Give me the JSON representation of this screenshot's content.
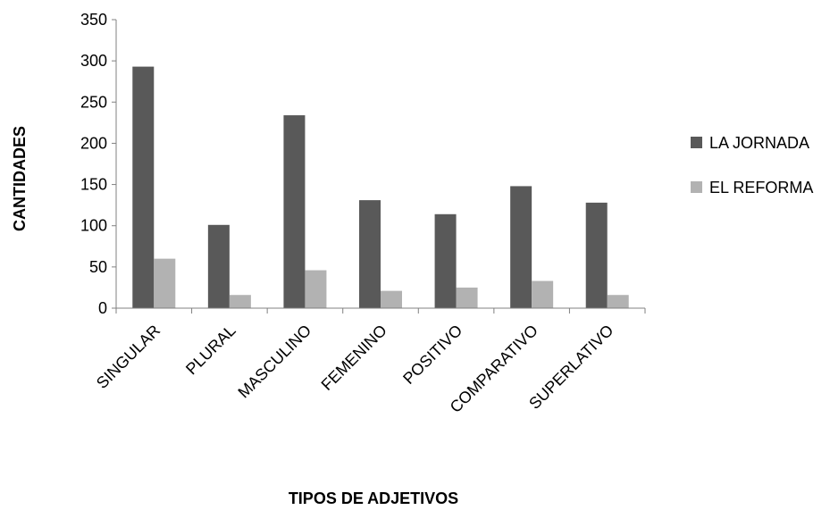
{
  "chart_data": {
    "type": "bar",
    "title": "",
    "xlabel": "TIPOS DE ADJETIVOS",
    "ylabel": "CANTIDADES",
    "ylim": [
      0,
      350
    ],
    "yticks": [
      0,
      50,
      100,
      150,
      200,
      250,
      300,
      350
    ],
    "grid": false,
    "legend_position": "right",
    "categories": [
      "SINGULAR",
      "PLURAL",
      "MASCULINO",
      "FEMENINO",
      "POSITIVO",
      "COMPARATIVO",
      "SUPERLATIVO"
    ],
    "series": [
      {
        "name": "LA JORNADA",
        "color": "#595959",
        "values": [
          293,
          101,
          234,
          131,
          114,
          148,
          128
        ]
      },
      {
        "name": "EL REFORMA",
        "color": "#b2b2b2",
        "values": [
          60,
          16,
          46,
          21,
          25,
          33,
          16
        ]
      }
    ]
  }
}
